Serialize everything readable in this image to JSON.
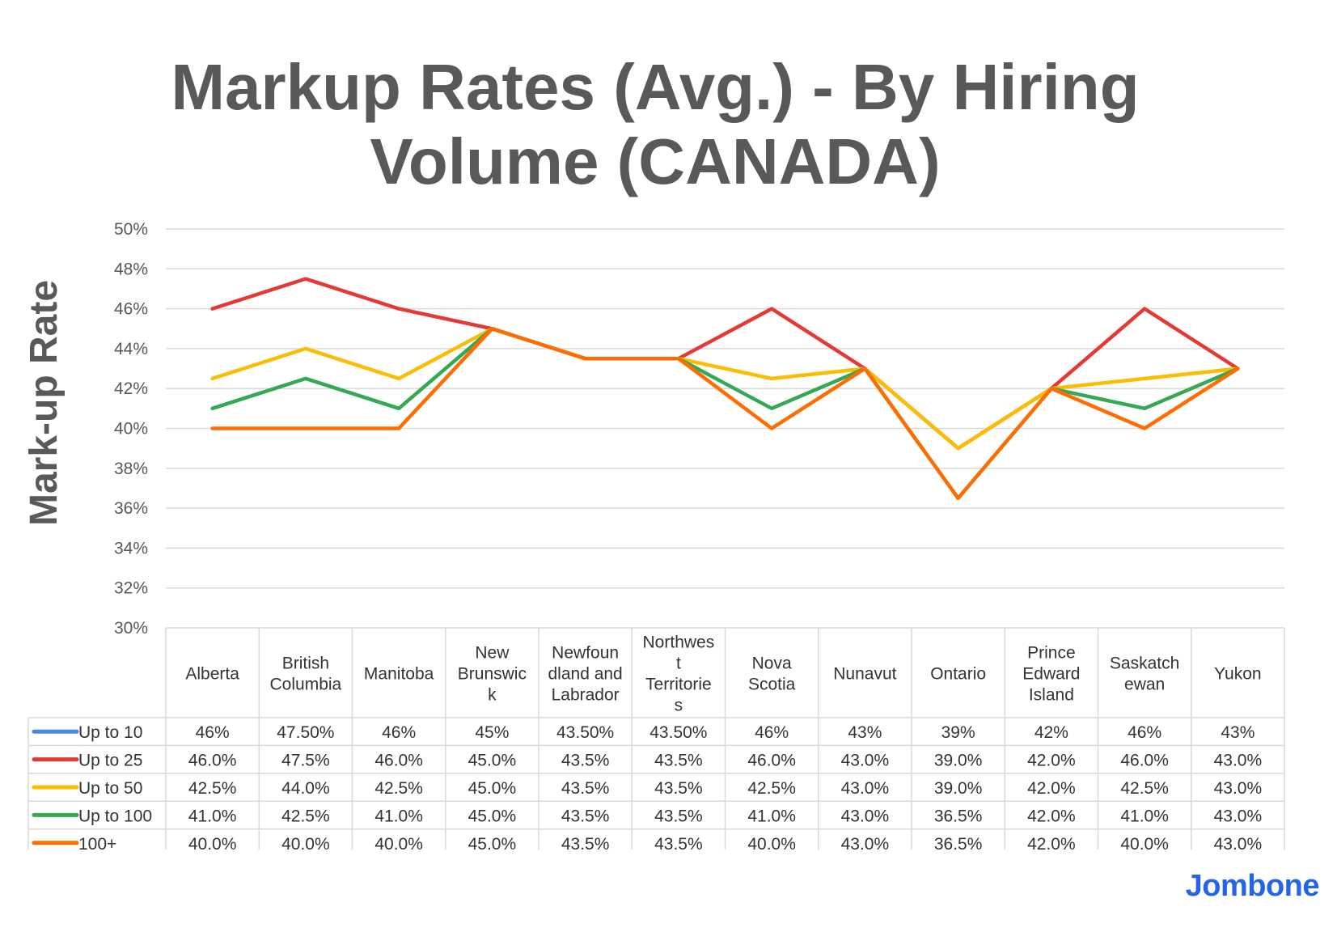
{
  "brand": "Jombone",
  "chart_data": {
    "type": "line",
    "title": "Markup Rates (Avg.) - By Hiring Volume (CANADA)",
    "ylabel": "Mark-up Rate",
    "xlabel": "",
    "ylim": [
      30,
      50
    ],
    "yticks": [
      "30%",
      "32%",
      "34%",
      "36%",
      "38%",
      "40%",
      "42%",
      "44%",
      "46%",
      "48%",
      "50%"
    ],
    "ytick_values": [
      30,
      32,
      34,
      36,
      38,
      40,
      42,
      44,
      46,
      48,
      50
    ],
    "grid": true,
    "legend": "data-table",
    "categories": [
      "Alberta",
      "British Columbia",
      "Manitoba",
      "New Brunswick",
      "Newfoundland and Labrador",
      "Northwest Territories",
      "Nova Scotia",
      "Nunavut",
      "Ontario",
      "Prince Edward Island",
      "Saskatchewan",
      "Yukon"
    ],
    "category_lines": [
      [
        "Alberta"
      ],
      [
        "British",
        "Columbia"
      ],
      [
        "Manitoba"
      ],
      [
        "New",
        "Brunswic",
        "k"
      ],
      [
        "Newfoun",
        "dland and",
        "Labrador"
      ],
      [
        "Northwes",
        "t",
        "Territorie",
        "s"
      ],
      [
        "Nova",
        "Scotia"
      ],
      [
        "Nunavut"
      ],
      [
        "Ontario"
      ],
      [
        "Prince",
        "Edward",
        "Island"
      ],
      [
        "Saskatch",
        "ewan"
      ],
      [
        "Yukon"
      ]
    ],
    "series": [
      {
        "name": "Up to 10",
        "color": "#4a86e8",
        "draw_line": false,
        "values": [
          46,
          47.5,
          46,
          45,
          43.5,
          43.5,
          46,
          43,
          39,
          42,
          46,
          43
        ],
        "labels": [
          "46%",
          "47.50%",
          "46%",
          "45%",
          "43.50%",
          "43.50%",
          "46%",
          "43%",
          "39%",
          "42%",
          "46%",
          "43%"
        ]
      },
      {
        "name": "Up to 25",
        "color": "#e53935",
        "draw_line": true,
        "values": [
          46,
          47.5,
          46,
          45,
          43.5,
          43.5,
          46,
          43,
          39,
          42,
          46,
          43
        ],
        "labels": [
          "46.0%",
          "47.5%",
          "46.0%",
          "45.0%",
          "43.5%",
          "43.5%",
          "46.0%",
          "43.0%",
          "39.0%",
          "42.0%",
          "46.0%",
          "43.0%"
        ]
      },
      {
        "name": "Up to 50",
        "color": "#fbbc04",
        "draw_line": true,
        "values": [
          42.5,
          44,
          42.5,
          45,
          43.5,
          43.5,
          42.5,
          43,
          39,
          42,
          42.5,
          43
        ],
        "labels": [
          "42.5%",
          "44.0%",
          "42.5%",
          "45.0%",
          "43.5%",
          "43.5%",
          "42.5%",
          "43.0%",
          "39.0%",
          "42.0%",
          "42.5%",
          "43.0%"
        ]
      },
      {
        "name": "Up to 100",
        "color": "#34a853",
        "draw_line": true,
        "values": [
          41,
          42.5,
          41,
          45,
          43.5,
          43.5,
          41,
          43,
          36.5,
          42,
          41,
          43
        ],
        "labels": [
          "41.0%",
          "42.5%",
          "41.0%",
          "45.0%",
          "43.5%",
          "43.5%",
          "41.0%",
          "43.0%",
          "36.5%",
          "42.0%",
          "41.0%",
          "43.0%"
        ]
      },
      {
        "name": "100+",
        "color": "#ff6d01",
        "draw_line": true,
        "values": [
          40,
          40,
          40,
          45,
          43.5,
          43.5,
          40,
          43,
          36.5,
          42,
          40,
          43
        ],
        "labels": [
          "40.0%",
          "40.0%",
          "40.0%",
          "45.0%",
          "43.5%",
          "43.5%",
          "40.0%",
          "43.0%",
          "36.5%",
          "42.0%",
          "40.0%",
          "43.0%"
        ]
      }
    ]
  }
}
